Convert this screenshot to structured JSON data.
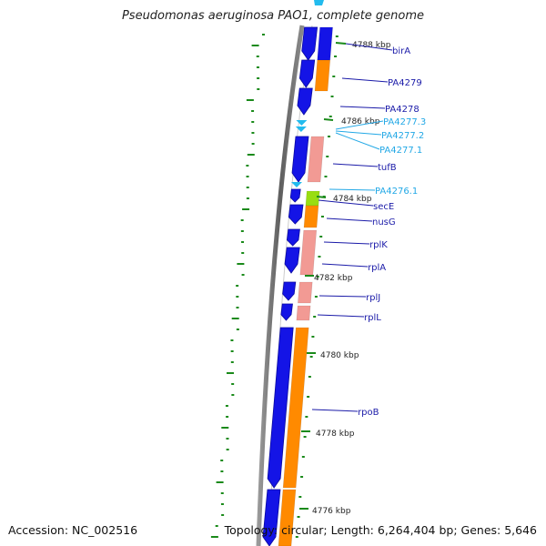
{
  "title": "Pseudomonas aeruginosa PAO1, complete genome",
  "footer": {
    "accession": "Accession: NC_002516",
    "topology": "Topology: circular; Length: 6,264,404 bp; Genes: 5,646"
  },
  "colors": {
    "cds": "#1414e6",
    "cds_dark": "#0a0aa0",
    "rna": "#f29a94",
    "orange": "#ff8a00",
    "green": "#99dd11",
    "cyan": "#22bbee",
    "label_dark": "#1a1aa8",
    "label_light": "#22a8e6",
    "tick": "#1a8a1a"
  },
  "kbp_ticks": [
    {
      "label": "4788 kbp"
    },
    {
      "label": "4786 kbp"
    },
    {
      "label": "4784 kbp"
    },
    {
      "label": "4782 kbp"
    },
    {
      "label": "4780 kbp"
    },
    {
      "label": "4778 kbp"
    },
    {
      "label": "4776 kbp"
    }
  ],
  "genes": [
    {
      "name": "birA",
      "style": "dark"
    },
    {
      "name": "PA4279",
      "style": "dark"
    },
    {
      "name": "PA4278",
      "style": "dark"
    },
    {
      "name": "PA4277.3",
      "style": "light"
    },
    {
      "name": "PA4277.2",
      "style": "light"
    },
    {
      "name": "PA4277.1",
      "style": "light"
    },
    {
      "name": "tufB",
      "style": "dark"
    },
    {
      "name": "PA4276.1",
      "style": "light"
    },
    {
      "name": "secE",
      "style": "dark"
    },
    {
      "name": "nusG",
      "style": "dark"
    },
    {
      "name": "rplK",
      "style": "dark"
    },
    {
      "name": "rplA",
      "style": "dark"
    },
    {
      "name": "rplJ",
      "style": "dark"
    },
    {
      "name": "rplL",
      "style": "dark"
    },
    {
      "name": "rpoB",
      "style": "dark"
    }
  ]
}
